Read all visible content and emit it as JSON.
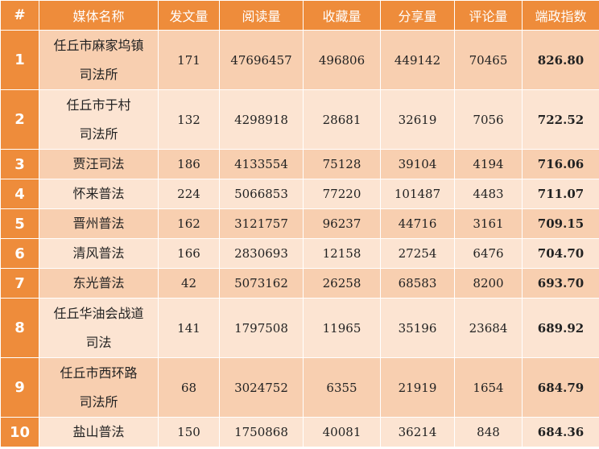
{
  "headers": [
    "#",
    "媒体名称",
    "发文量",
    "阅读量",
    "收藏量",
    "分享量",
    "评论量",
    "端政指数"
  ],
  "rows": [
    {
      "rank": "1",
      "name_lines": [
        "任丘市麻家坞镇",
        "司法所"
      ],
      "posts": "171",
      "reads": "47696457",
      "favorites": "496806",
      "shares": "449142",
      "comments": "70465",
      "index": "826.80"
    },
    {
      "rank": "2",
      "name_lines": [
        "任丘市于村",
        "司法所"
      ],
      "posts": "132",
      "reads": "4298918",
      "favorites": "28681",
      "shares": "32619",
      "comments": "7056",
      "index": "722.52"
    },
    {
      "rank": "3",
      "name_lines": [
        "贾汪司法"
      ],
      "posts": "186",
      "reads": "4133554",
      "favorites": "75128",
      "shares": "39104",
      "comments": "4194",
      "index": "716.06"
    },
    {
      "rank": "4",
      "name_lines": [
        "怀来普法"
      ],
      "posts": "224",
      "reads": "5066853",
      "favorites": "77220",
      "shares": "101487",
      "comments": "4483",
      "index": "711.07"
    },
    {
      "rank": "5",
      "name_lines": [
        "晋州普法"
      ],
      "posts": "162",
      "reads": "3121757",
      "favorites": "96237",
      "shares": "44716",
      "comments": "3161",
      "index": "709.15"
    },
    {
      "rank": "6",
      "name_lines": [
        "清风普法"
      ],
      "posts": "166",
      "reads": "2830693",
      "favorites": "12158",
      "shares": "27254",
      "comments": "6476",
      "index": "704.70"
    },
    {
      "rank": "7",
      "name_lines": [
        "东光普法"
      ],
      "posts": "42",
      "reads": "5073162",
      "favorites": "26258",
      "shares": "68583",
      "comments": "8200",
      "index": "693.70"
    },
    {
      "rank": "8",
      "name_lines": [
        "任丘华油会战道",
        "司法"
      ],
      "posts": "141",
      "reads": "1797508",
      "favorites": "11965",
      "shares": "35196",
      "comments": "23684",
      "index": "689.92"
    },
    {
      "rank": "9",
      "name_lines": [
        "任丘市西环路",
        "司法所"
      ],
      "posts": "68",
      "reads": "3024752",
      "favorites": "6355",
      "shares": "21919",
      "comments": "1654",
      "index": "684.79"
    },
    {
      "rank": "10",
      "name_lines": [
        "盐山普法"
      ],
      "posts": "150",
      "reads": "1750868",
      "favorites": "40081",
      "shares": "36214",
      "comments": "848",
      "index": "684.36"
    }
  ]
}
